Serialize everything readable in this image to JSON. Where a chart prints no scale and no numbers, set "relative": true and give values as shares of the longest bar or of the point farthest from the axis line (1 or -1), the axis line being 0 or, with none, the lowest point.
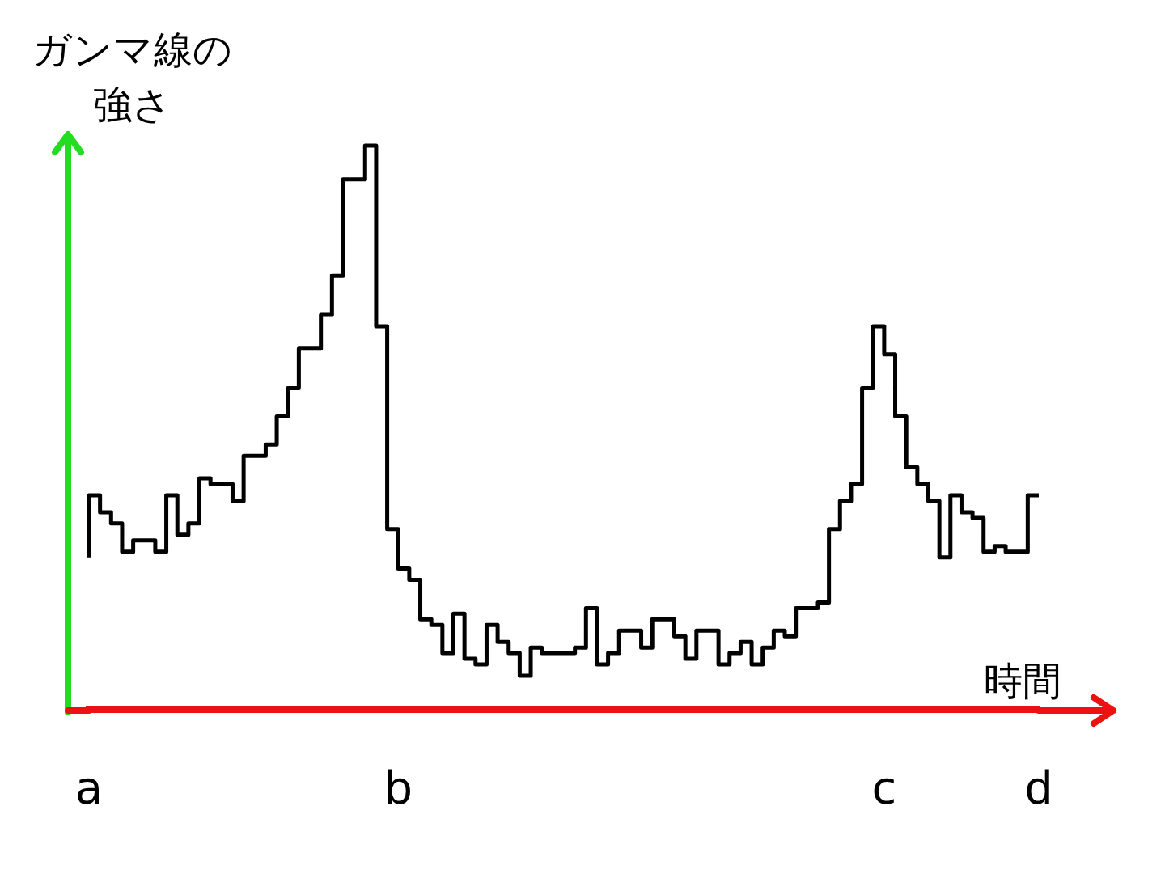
{
  "chart_data": {
    "type": "step",
    "relative": true,
    "xlabel": "時間",
    "ylabel": "ガンマ線の強さ",
    "color": "#000000",
    "marker": "none",
    "grid": false,
    "legend": false,
    "categories": [
      "a",
      null,
      null,
      null,
      null,
      null,
      null,
      null,
      null,
      null,
      null,
      null,
      null,
      null,
      null,
      null,
      null,
      null,
      null,
      null,
      null,
      null,
      null,
      null,
      null,
      null,
      null,
      null,
      "b",
      null,
      null,
      null,
      null,
      null,
      null,
      null,
      null,
      null,
      null,
      null,
      null,
      null,
      null,
      null,
      null,
      null,
      null,
      null,
      null,
      null,
      null,
      null,
      null,
      null,
      null,
      null,
      null,
      null,
      null,
      null,
      null,
      null,
      null,
      null,
      null,
      null,
      null,
      null,
      null,
      null,
      null,
      null,
      "c",
      null,
      null,
      null,
      null,
      null,
      null,
      null,
      null,
      null,
      null,
      null,
      null,
      null,
      "d"
    ],
    "values": [
      0.27,
      0.38,
      0.35,
      0.33,
      0.28,
      0.3,
      0.3,
      0.28,
      0.38,
      0.31,
      0.33,
      0.41,
      0.4,
      0.4,
      0.37,
      0.45,
      0.45,
      0.47,
      0.52,
      0.57,
      0.64,
      0.64,
      0.7,
      0.77,
      0.94,
      0.94,
      1,
      0.68,
      0.32,
      0.25,
      0.23,
      0.16,
      0.15,
      0.1,
      0.17,
      0.09,
      0.08,
      0.15,
      0.12,
      0.1,
      0.06,
      0.11,
      0.1,
      0.1,
      0.1,
      0.11,
      0.18,
      0.08,
      0.1,
      0.14,
      0.14,
      0.11,
      0.16,
      0.16,
      0.13,
      0.09,
      0.14,
      0.14,
      0.08,
      0.1,
      0.12,
      0.08,
      0.11,
      0.14,
      0.13,
      0.18,
      0.18,
      0.19,
      0.32,
      0.37,
      0.4,
      0.57,
      0.68,
      0.63,
      0.52,
      0.43,
      0.4,
      0.37,
      0.27,
      0.38,
      0.35,
      0.34,
      0.28,
      0.29,
      0.28,
      0.28,
      0.38
    ]
  }
}
